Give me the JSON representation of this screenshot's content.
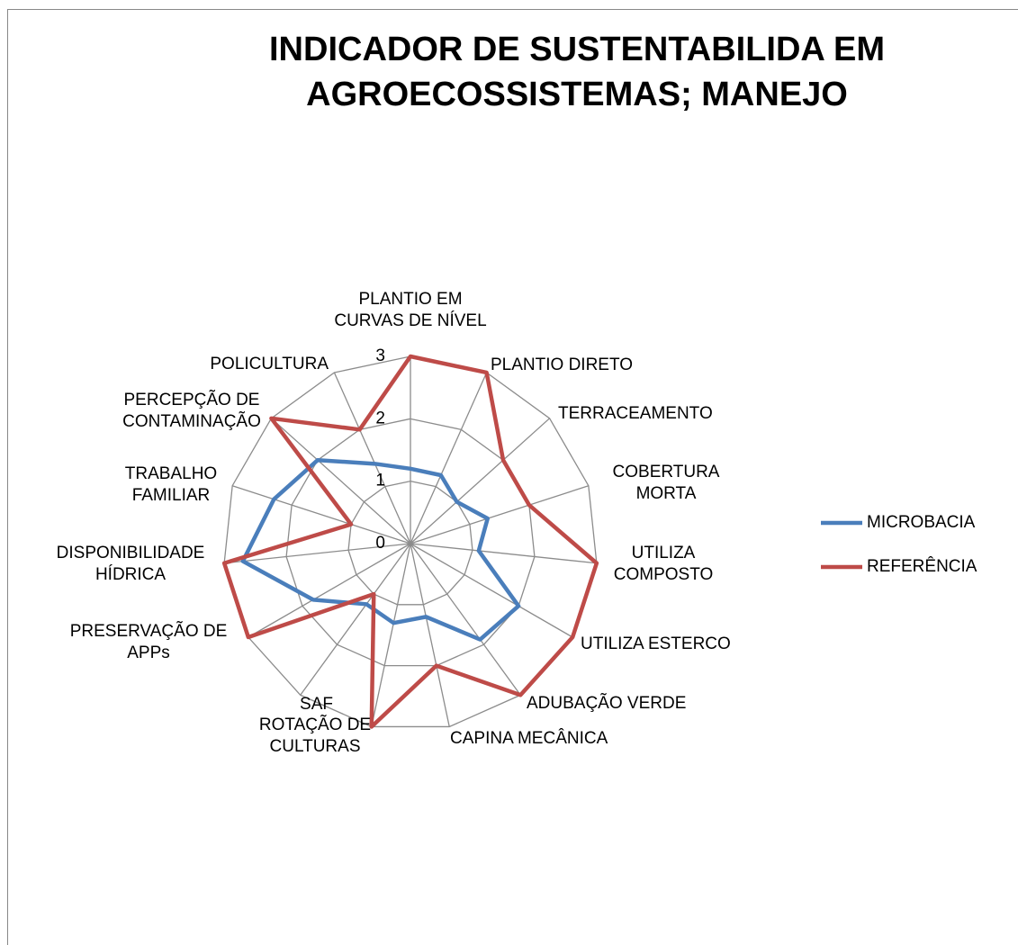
{
  "chart_data": {
    "type": "radar",
    "title": "INDICADOR DE SUSTENTABILIDA EM AGROECOSSISTEMAS; MANEJO",
    "categories": [
      "PLANTIO EM CURVAS DE NÍVEL",
      "PLANTIO DIRETO",
      "TERRACEAMENTO",
      "COBERTURA MORTA",
      "UTILIZA COMPOSTO",
      "UTILIZA ESTERCO",
      "ADUBAÇÃO VERDE",
      "CAPINA MECÂNICA",
      "ROTAÇÃO DE CULTURAS",
      "SAF",
      "PRESERVAÇÃO DE APPs",
      "DISPONIBILIDADE HÍDRICA",
      "TRABALHO FAMILIAR",
      "PERCEPÇÃO DE CONTAMINAÇÃO",
      "POLICULTURA"
    ],
    "series": [
      {
        "name": "MICROBACIA",
        "color": "#4a7ebb",
        "values": [
          1.2,
          1.2,
          1,
          1.3,
          1.1,
          2,
          1.9,
          1.2,
          1.3,
          1.2,
          1.8,
          2.7,
          2.3,
          2,
          1.4
        ]
      },
      {
        "name": "REFERÊNCIA",
        "color": "#be4b48",
        "values": [
          3,
          3,
          2,
          2,
          3,
          3,
          3,
          2,
          3,
          1,
          3,
          3,
          1,
          3,
          2
        ]
      }
    ],
    "ylim": [
      0,
      3
    ],
    "yticks": [
      0,
      1,
      2,
      3
    ],
    "grid": true,
    "legend": "right"
  }
}
